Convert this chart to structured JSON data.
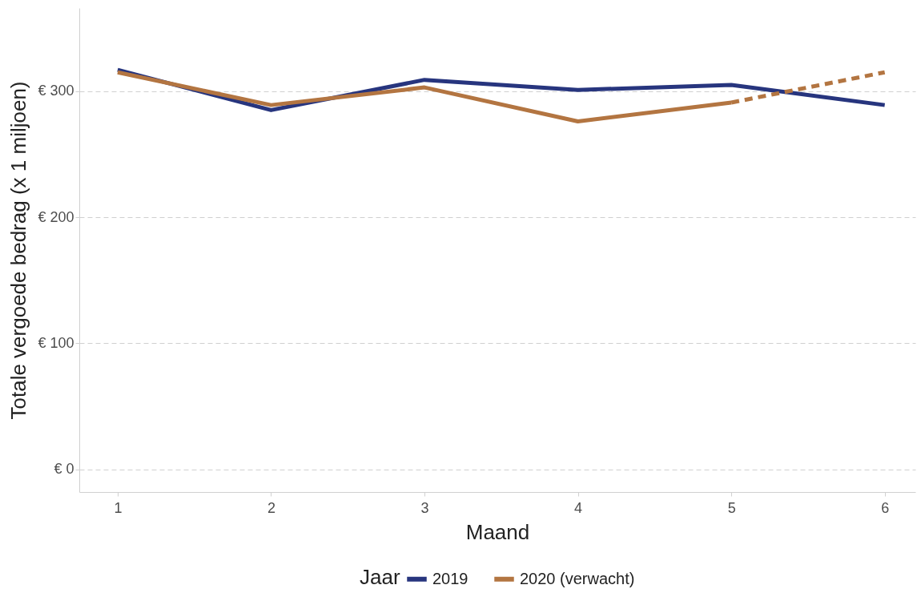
{
  "chart_data": {
    "type": "line",
    "xlabel": "Maand",
    "ylabel": "Totale vergoede bedrag (x 1 miljoen)",
    "legend_title": "Jaar",
    "x": [
      1,
      2,
      3,
      4,
      5,
      6
    ],
    "series": [
      {
        "name": "2019",
        "color": "#27357e",
        "values": [
          317,
          285,
          309,
          301,
          305,
          289
        ]
      },
      {
        "name": "2020 (verwacht)",
        "color": "#b37541",
        "values": [
          315,
          289,
          303,
          276,
          291,
          null
        ]
      },
      {
        "color": "#b37541",
        "line_style": "dashed",
        "values": [
          null,
          null,
          null,
          null,
          291,
          315
        ]
      }
    ],
    "xlim": [
      0.75,
      6.2
    ],
    "xticks": [
      1,
      2,
      3,
      4,
      5,
      6
    ],
    "ylim": [
      -18,
      366
    ],
    "yticks": [
      {
        "value": 0,
        "label": "€ 0"
      },
      {
        "value": 100,
        "label": "€ 100"
      },
      {
        "value": 200,
        "label": "€ 200"
      },
      {
        "value": 300,
        "label": "€ 300"
      }
    ],
    "grid": "y",
    "legend": "bottom",
    "line_style": "solid"
  }
}
